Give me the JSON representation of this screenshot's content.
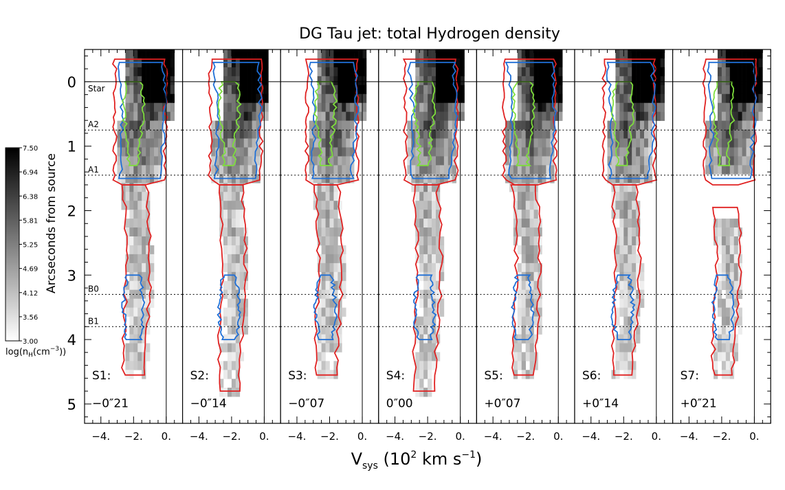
{
  "chart_data": {
    "type": "heatmap",
    "title": "DG Tau jet: total Hydrogen density",
    "xlabel": "V_sys (10^2 km s^-1)",
    "xlabel_parts": {
      "main": "V",
      "sub": "sys",
      "unit_open": " (10",
      "exp1": "2",
      "unit_mid": " km s",
      "exp2": "-1",
      "unit_close": ")"
    },
    "ylabel": "Arcseconds from source",
    "xlim": [
      -5.0,
      1.0
    ],
    "ylim": [
      5.3,
      -0.5
    ],
    "x_ticks": [
      -4,
      -2,
      0
    ],
    "x_tick_labels": [
      "-4.",
      "-2.",
      "0."
    ],
    "y_ticks": [
      0,
      1,
      2,
      3,
      4,
      5
    ],
    "y_tick_labels": [
      "0",
      "1",
      "2",
      "3",
      "4",
      "5"
    ],
    "reference_lines": [
      {
        "label": "Star",
        "y": 0.0,
        "style": "solid"
      },
      {
        "label": "A2",
        "y": 0.75,
        "style": "dotted"
      },
      {
        "label": "A1",
        "y": 1.45,
        "style": "dotted"
      },
      {
        "label": "B0",
        "y": 3.3,
        "style": "dotted"
      },
      {
        "label": "B1",
        "y": 3.8,
        "style": "dotted"
      }
    ],
    "panels": [
      {
        "label": "S1:",
        "offset": "−0″21"
      },
      {
        "label": "S2:",
        "offset": "−0″14"
      },
      {
        "label": "S3:",
        "offset": "−0″07"
      },
      {
        "label": "S4:",
        "offset": "0″00"
      },
      {
        "label": "S5:",
        "offset": "+0″07"
      },
      {
        "label": "S6:",
        "offset": "+0″14"
      },
      {
        "label": "S7:",
        "offset": "+0″21"
      }
    ],
    "colorbar": {
      "label_prefix": "log(n",
      "label_sub": "H",
      "label_mid": "(cm",
      "label_exp": "−3",
      "label_suffix": "))",
      "min": 3.0,
      "max": 7.5,
      "tick_labels": [
        "7.50",
        "6.94",
        "6.38",
        "5.81",
        "5.25",
        "4.69",
        "4.12",
        "3.56",
        "3.00"
      ]
    },
    "contour_colors": {
      "red": "#e02020",
      "blue": "#1f6fd6",
      "green": "#7ede3c"
    },
    "grid": false
  }
}
